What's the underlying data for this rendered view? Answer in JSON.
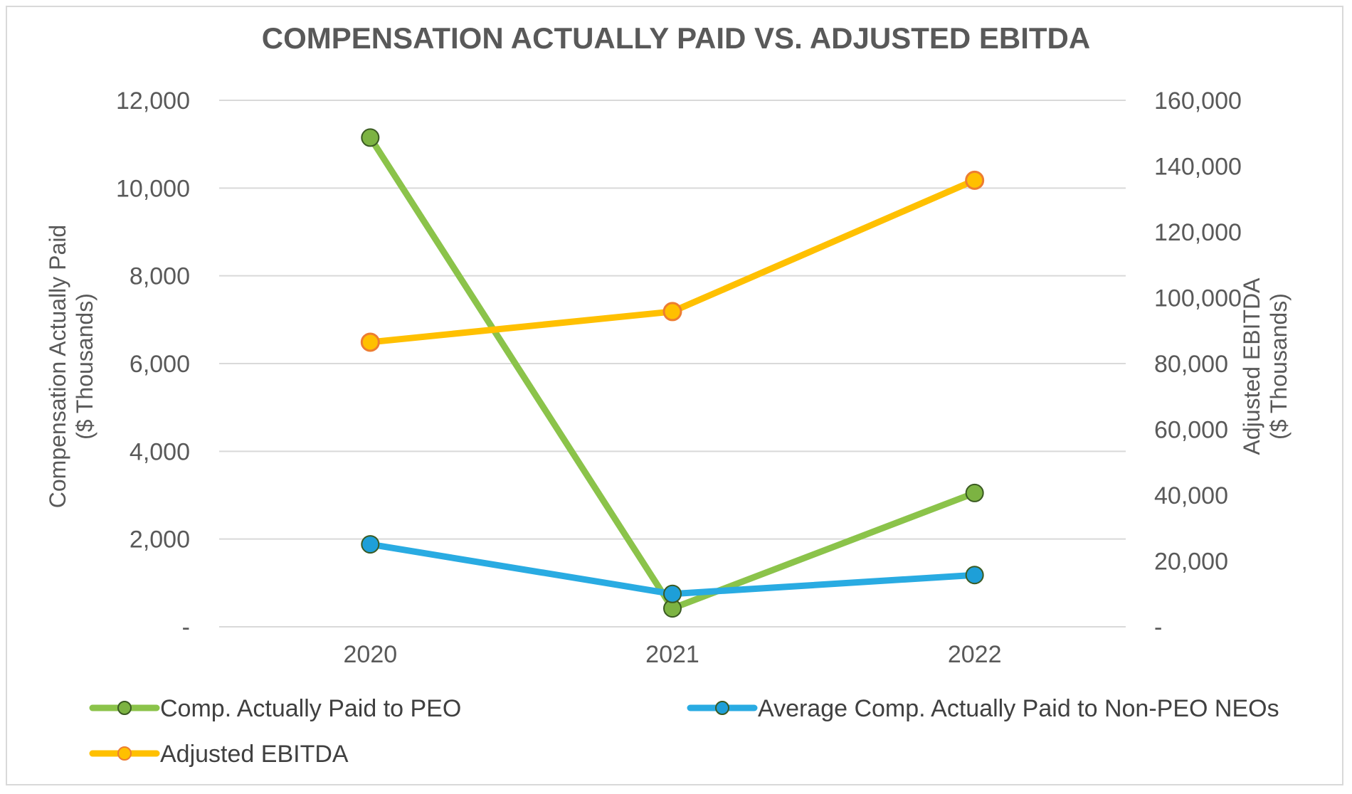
{
  "chart_data": {
    "type": "line",
    "title": "COMPENSATION ACTUALLY PAID VS. ADJUSTED EBITDA",
    "categories": [
      "2020",
      "2021",
      "2022"
    ],
    "ylabel_left": [
      "Compensation Actually Paid",
      "($ Thousands)"
    ],
    "ylabel_right": [
      "Adjusted EBITDA",
      "($ Thousands)"
    ],
    "ylim_left": [
      0,
      12000
    ],
    "ylim_right": [
      0,
      160000
    ],
    "yticks_left": [
      "-",
      "2,000",
      "4,000",
      "6,000",
      "8,000",
      "10,000",
      "12,000"
    ],
    "yticks_right": [
      "-",
      "20,000",
      "40,000",
      "60,000",
      "80,000",
      "100,000",
      "120,000",
      "140,000",
      "160,000"
    ],
    "grid": true,
    "legend_position": "bottom",
    "series": [
      {
        "name": "Comp. Actually Paid to PEO",
        "axis": "left",
        "color": "#8bc34a",
        "marker_color": "#7cb342",
        "values": [
          11150,
          420,
          3050
        ]
      },
      {
        "name": "Average Comp. Actually Paid to Non-PEO NEOs",
        "axis": "left",
        "color": "#29abe2",
        "marker_color": "#1e9fd8",
        "values": [
          1880,
          750,
          1180
        ]
      },
      {
        "name": "Adjusted EBITDA",
        "axis": "right",
        "color": "#ffc000",
        "marker_color": "#ffc000",
        "marker_edge": "#ed7d31",
        "values": [
          86500,
          95800,
          135700
        ]
      }
    ]
  }
}
